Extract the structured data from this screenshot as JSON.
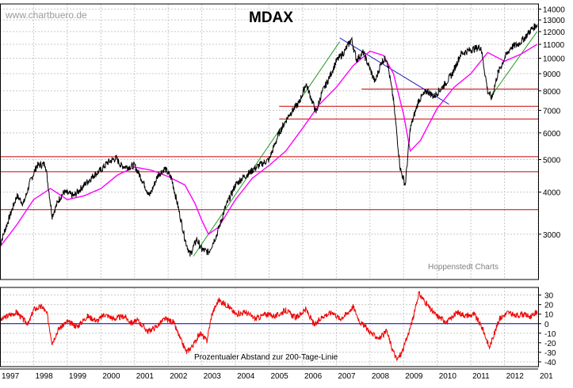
{
  "header": {
    "watermark": "www.chartbuero.de",
    "title": "MDAX",
    "credit": "Hoppenstedt Charts",
    "oscillator_label": "Prozentualer Abstand zur 200-Tage-Linie"
  },
  "colors": {
    "price": "#000000",
    "ma200": "#ff00ff",
    "support": "#cc0000",
    "trend_up": "#2a9a2a",
    "trend_down": "#2020c0",
    "oscillator": "#ee0000",
    "zero_line": "#0000cc",
    "grid": "#c8c8c8"
  },
  "chart_data": [
    {
      "type": "line",
      "title": "MDAX",
      "yscale": "log",
      "ylim": [
        2200,
        14500
      ],
      "xlim": [
        1997.0,
        2013.0
      ],
      "yticks": [
        3000,
        4000,
        5000,
        6000,
        7000,
        8000,
        9000,
        10000,
        11000,
        12000,
        13000,
        14000
      ],
      "xtick_labels": [
        "1997",
        "1998",
        "1999",
        "2000",
        "2001",
        "2002",
        "2003",
        "2004",
        "2005",
        "2006",
        "2007",
        "2008",
        "2009",
        "2010",
        "2011",
        "2012",
        "201"
      ],
      "grid": true,
      "series": [
        {
          "key": "price",
          "x": [
            1997.0,
            1997.25,
            1997.5,
            1997.7,
            1997.9,
            1998.1,
            1998.35,
            1998.55,
            1998.75,
            1998.9,
            1999.2,
            1999.5,
            1999.8,
            2000.0,
            2000.2,
            2000.45,
            2000.6,
            2000.8,
            2001.0,
            2001.2,
            2001.45,
            2001.7,
            2001.9,
            2002.1,
            2002.3,
            2002.5,
            2002.65,
            2002.85,
            2003.0,
            2003.2,
            2003.45,
            2003.7,
            2004.0,
            2004.2,
            2004.45,
            2004.7,
            2005.0,
            2005.3,
            2005.6,
            2005.9,
            2006.1,
            2006.4,
            2006.55,
            2006.8,
            2007.0,
            2007.25,
            2007.45,
            2007.6,
            2007.8,
            2008.0,
            2008.15,
            2008.35,
            2008.5,
            2008.7,
            2008.9,
            2009.05,
            2009.2,
            2009.45,
            2009.7,
            2009.9,
            2010.2,
            2010.45,
            2010.7,
            2011.0,
            2011.3,
            2011.5,
            2011.62,
            2011.8,
            2012.0,
            2012.2,
            2012.4,
            2012.6,
            2012.8,
            2012.97
          ],
          "values": [
            2800,
            3300,
            3900,
            3700,
            4300,
            4800,
            4850,
            3400,
            3800,
            4000,
            3900,
            4200,
            4500,
            4650,
            4900,
            5050,
            4800,
            4750,
            4800,
            4400,
            3900,
            4500,
            4700,
            4400,
            3600,
            2900,
            2600,
            2900,
            2700,
            2650,
            3000,
            3600,
            4200,
            4400,
            4600,
            4800,
            5000,
            6000,
            6800,
            7400,
            8400,
            6900,
            7800,
            8800,
            9800,
            10500,
            11400,
            9900,
            10400,
            9300,
            8500,
            9800,
            10000,
            7500,
            4700,
            4200,
            6200,
            7500,
            8000,
            7700,
            8300,
            9000,
            10300,
            10600,
            10800,
            8000,
            7600,
            9000,
            10000,
            10800,
            11000,
            11500,
            12200,
            12600
          ]
        },
        {
          "key": "ma200",
          "x": [
            1997.0,
            1997.5,
            1998.0,
            1998.5,
            1999.0,
            1999.5,
            2000.0,
            2000.5,
            2001.0,
            2001.5,
            2002.0,
            2002.5,
            2002.8,
            2003.0,
            2003.2,
            2003.5,
            2004.0,
            2004.5,
            2005.0,
            2005.5,
            2006.0,
            2006.5,
            2007.0,
            2007.5,
            2008.0,
            2008.4,
            2008.7,
            2009.0,
            2009.2,
            2009.5,
            2010.0,
            2010.5,
            2011.0,
            2011.5,
            2012.0,
            2012.5,
            2012.97
          ],
          "values": [
            2750,
            3200,
            3800,
            4100,
            3800,
            3900,
            4100,
            4500,
            4750,
            4650,
            4450,
            4200,
            3700,
            3300,
            3000,
            3150,
            3800,
            4400,
            4800,
            5300,
            6200,
            7300,
            8200,
            9500,
            10500,
            10200,
            9000,
            6800,
            5300,
            5700,
            7100,
            8200,
            9000,
            10400,
            9800,
            10300,
            11000
          ]
        },
        {
          "key": "trend_up_1",
          "x": [
            2002.75,
            2007.1
          ],
          "values": [
            2580,
            11200
          ]
        },
        {
          "key": "trend_up_2",
          "x": [
            2011.6,
            2012.97
          ],
          "values": [
            7700,
            12000
          ]
        },
        {
          "key": "trend_down",
          "x": [
            2007.1,
            2010.35
          ],
          "values": [
            11500,
            7300
          ]
        },
        {
          "key": "support",
          "levels": [
            3550,
            4600,
            5100
          ],
          "x": [
            1997.0,
            2013.0
          ]
        },
        {
          "key": "resistance",
          "levels": [
            6600,
            7200
          ],
          "x": [
            2005.3,
            2013.0
          ]
        },
        {
          "key": "resistance_short",
          "levels": [
            8100
          ],
          "x": [
            2007.75,
            2013.0
          ]
        }
      ]
    },
    {
      "type": "line",
      "title": "Prozentualer Abstand zur 200-Tage-Linie",
      "ylim": [
        -45,
        38
      ],
      "xlim": [
        1997.0,
        2013.0
      ],
      "yticks": [
        30,
        20,
        10,
        0,
        -10,
        -20,
        -30,
        -40
      ],
      "grid": true,
      "series": [
        {
          "key": "oscillator",
          "x": [
            1997.0,
            1997.2,
            1997.5,
            1997.7,
            1997.85,
            1998.0,
            1998.25,
            1998.4,
            1998.55,
            1998.75,
            1999.0,
            1999.3,
            1999.6,
            1999.9,
            2000.1,
            2000.4,
            2000.7,
            2000.9,
            2001.1,
            2001.4,
            2001.65,
            2001.9,
            2002.15,
            2002.35,
            2002.55,
            2002.75,
            2002.95,
            2003.15,
            2003.3,
            2003.5,
            2003.8,
            2004.0,
            2004.3,
            2004.6,
            2004.9,
            2005.2,
            2005.5,
            2005.8,
            2006.1,
            2006.35,
            2006.6,
            2006.9,
            2007.1,
            2007.3,
            2007.5,
            2007.7,
            2007.9,
            2008.1,
            2008.3,
            2008.5,
            2008.65,
            2008.8,
            2008.95,
            2009.1,
            2009.3,
            2009.45,
            2009.6,
            2009.8,
            2010.0,
            2010.3,
            2010.6,
            2010.9,
            2011.1,
            2011.35,
            2011.55,
            2011.7,
            2011.85,
            2012.1,
            2012.3,
            2012.55,
            2012.8,
            2012.97
          ],
          "values": [
            3,
            8,
            12,
            4,
            0,
            15,
            18,
            10,
            -20,
            -5,
            2,
            -3,
            8,
            3,
            10,
            5,
            8,
            1,
            3,
            -8,
            -3,
            5,
            2,
            -15,
            -30,
            -22,
            -10,
            -18,
            10,
            25,
            18,
            10,
            12,
            5,
            10,
            8,
            14,
            6,
            15,
            -2,
            8,
            12,
            5,
            10,
            18,
            2,
            -5,
            -12,
            -15,
            -8,
            -25,
            -38,
            -30,
            -15,
            8,
            32,
            25,
            15,
            8,
            2,
            12,
            8,
            10,
            -5,
            -25,
            -10,
            5,
            12,
            8,
            10,
            7,
            13
          ]
        }
      ]
    }
  ]
}
